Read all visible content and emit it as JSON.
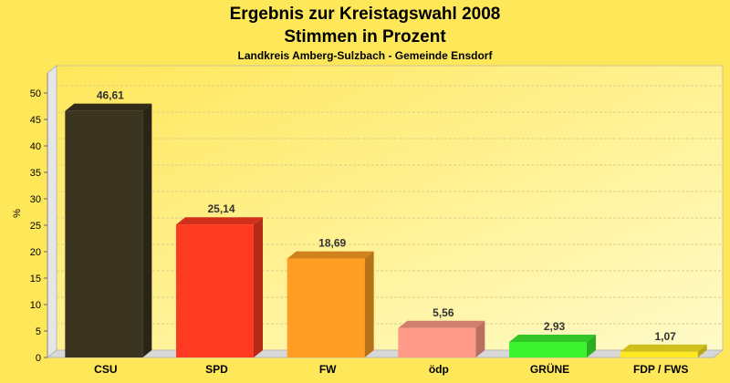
{
  "page": {
    "background": "#ffe75a"
  },
  "chart_data": {
    "type": "bar",
    "title": "Ergebnis zur Kreistagswahl 2008",
    "subtitle": "Stimmen in Prozent",
    "caption": "Landkreis Amberg-Sulzbach - Gemeinde Ensdorf",
    "ylabel": "%",
    "xlabel": "",
    "ylim": [
      0,
      50
    ],
    "yticks": [
      0,
      5,
      10,
      15,
      20,
      25,
      30,
      35,
      40,
      45,
      50
    ],
    "grid": true,
    "categories": [
      "CSU",
      "SPD",
      "FW",
      "ödp",
      "GRÜNE",
      "FDP / FWS"
    ],
    "values": [
      46.61,
      25.14,
      18.69,
      5.56,
      2.93,
      1.07
    ],
    "value_labels": [
      "46,61",
      "25,14",
      "18,69",
      "5,56",
      "2,93",
      "1,07"
    ],
    "colors": [
      "#3a3420",
      "#ff3a22",
      "#ff9e22",
      "#ff9a88",
      "#3df22e",
      "#ffe922"
    ]
  }
}
